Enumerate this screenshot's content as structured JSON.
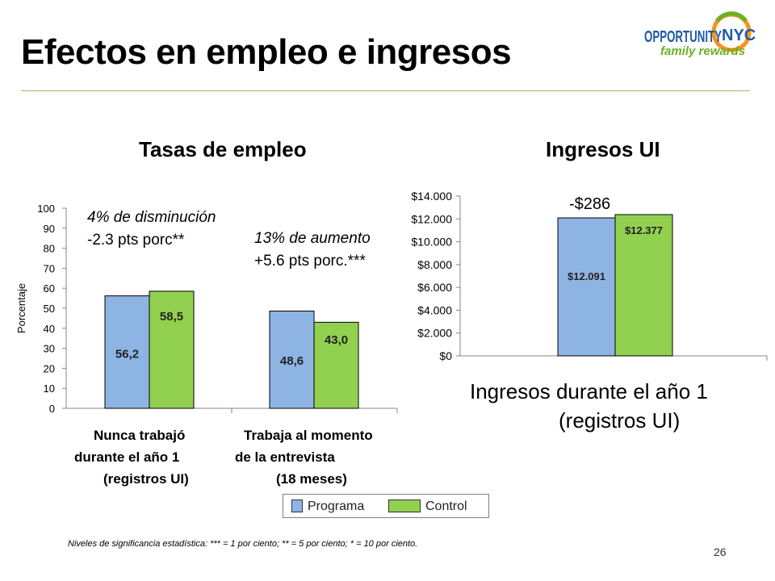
{
  "slide": {
    "title": "Efectos en empleo e ingresos",
    "page_number": "26",
    "footnote": "Niveles de significancia estadística: *** = 1 por ciento; ** = 5 por ciento; * = 10 por ciento.",
    "logo": {
      "word1": "OPPORTUNITY",
      "word2": "NYC",
      "tagline": "family rewards"
    }
  },
  "colors": {
    "programa": "#8eb4e3",
    "control": "#92d050",
    "rule": "#9bbb59",
    "logo_blue": "#1f5aa6",
    "logo_green": "#6ab023",
    "logo_orange": "#f7941d"
  },
  "legend": {
    "items": [
      "Programa",
      "Control"
    ]
  },
  "annotations": {
    "left_decrease": {
      "line1": "4% de disminución",
      "line2": "-2.3 pts porc**"
    },
    "left_increase": {
      "line1": "13% de aumento",
      "line2": "+5.6 pts porc.***"
    },
    "right_diff": "-$286"
  },
  "chart_data": [
    {
      "type": "bar",
      "title": "Tasas de empleo",
      "ylabel": "Porcentaje",
      "ylim": [
        0,
        100
      ],
      "yticks": [
        0,
        10,
        20,
        30,
        40,
        50,
        60,
        70,
        80,
        90,
        100
      ],
      "grid": false,
      "categories": [
        [
          "Nunca trabajó",
          "durante el año 1",
          "(registros UI)"
        ],
        [
          "Trabaja al momento",
          "de la entrevista",
          "(18 meses)"
        ]
      ],
      "series": [
        {
          "name": "Programa",
          "values": [
            56.2,
            48.6
          ],
          "labels": [
            "56,2",
            "48,6"
          ]
        },
        {
          "name": "Control",
          "values": [
            58.5,
            43.0
          ],
          "labels": [
            "58,5",
            "43,0"
          ]
        }
      ],
      "legend": "bottom"
    },
    {
      "type": "bar",
      "title": "Ingresos UI",
      "xlabel": [
        "Ingresos durante el año 1",
        "(registros UI)"
      ],
      "ylim": [
        0,
        14000
      ],
      "ytick_labels": [
        "$0",
        "$2.000",
        "$4.000",
        "$6.000",
        "$8.000",
        "$10.000",
        "$12.000",
        "$14.000"
      ],
      "grid": false,
      "series": [
        {
          "name": "Programa",
          "values": [
            12091
          ],
          "labels": [
            "$12.091"
          ]
        },
        {
          "name": "Control",
          "values": [
            12377
          ],
          "labels": [
            "$12.377"
          ]
        }
      ]
    }
  ]
}
